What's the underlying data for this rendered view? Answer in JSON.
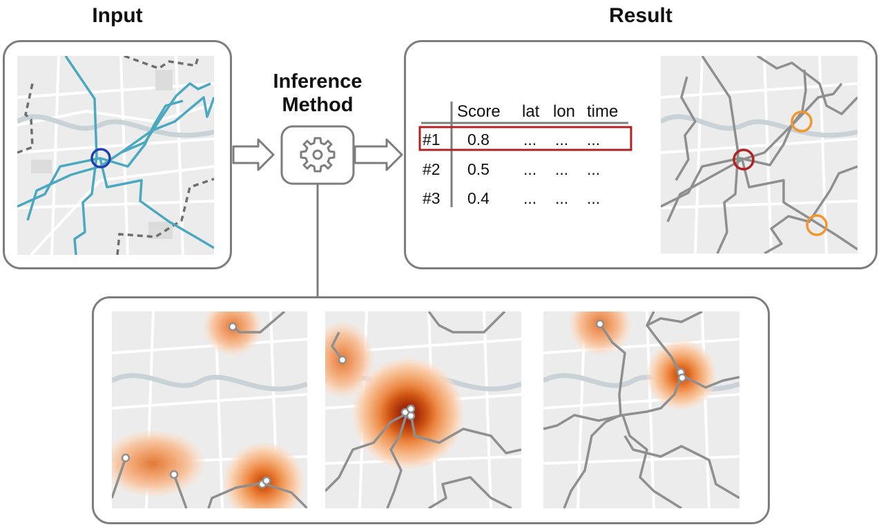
{
  "sections": {
    "input_title": "Input",
    "result_title": "Result",
    "method_title_line1": "Inference",
    "method_title_line2": "Method"
  },
  "results_table": {
    "columns": [
      "Score",
      "lat",
      "lon",
      "time"
    ],
    "rows": [
      {
        "rank": "#1",
        "score": "0.8",
        "lat": "...",
        "lon": "...",
        "time": "...",
        "highlighted": true
      },
      {
        "rank": "#2",
        "score": "0.5",
        "lat": "...",
        "lon": "...",
        "time": "...",
        "highlighted": false
      },
      {
        "rank": "#3",
        "score": "0.4",
        "lat": "...",
        "lon": "...",
        "time": "...",
        "highlighted": false
      }
    ]
  },
  "icons": {
    "method": "gear-icon",
    "flow": "arrow-right-icon"
  },
  "colors": {
    "frame": "#7d7d7d",
    "input_trajectory": "#4aa8c0",
    "input_meeting_marker": "#1f3fb0",
    "dashed_trajectory": "#6e6e6e",
    "result_trajectory": "#8f8f8f",
    "top_match_marker": "#b22222",
    "other_match_marker": "#f0962c",
    "highlight_box": "#b22222",
    "heatmap_core": "#b8420a",
    "heatmap_edge": "#fbe3d1"
  }
}
